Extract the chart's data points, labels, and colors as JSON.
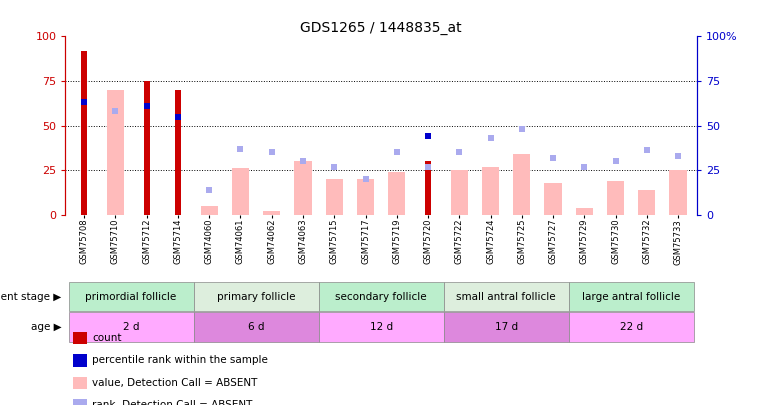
{
  "title": "GDS1265 / 1448835_at",
  "samples": [
    "GSM75708",
    "GSM75710",
    "GSM75712",
    "GSM75714",
    "GSM74060",
    "GSM74061",
    "GSM74062",
    "GSM74063",
    "GSM75715",
    "GSM75717",
    "GSM75719",
    "GSM75720",
    "GSM75722",
    "GSM75724",
    "GSM75725",
    "GSM75727",
    "GSM75729",
    "GSM75730",
    "GSM75732",
    "GSM75733"
  ],
  "count_values": [
    92,
    0,
    75,
    70,
    0,
    0,
    0,
    0,
    0,
    0,
    0,
    30,
    0,
    0,
    0,
    0,
    0,
    0,
    0,
    0
  ],
  "count_color": "#cc0000",
  "percentile_rank_values": [
    63,
    0,
    61,
    55,
    0,
    0,
    0,
    0,
    0,
    0,
    0,
    44,
    0,
    0,
    0,
    0,
    0,
    0,
    0,
    0
  ],
  "percentile_rank_color": "#0000cc",
  "absent_value_values": [
    0,
    70,
    0,
    0,
    5,
    26,
    2,
    30,
    20,
    20,
    24,
    0,
    25,
    27,
    34,
    18,
    4,
    19,
    14,
    25
  ],
  "absent_value_color": "#ffbbbb",
  "absent_rank_values": [
    0,
    58,
    0,
    0,
    14,
    37,
    35,
    30,
    27,
    20,
    35,
    27,
    35,
    43,
    48,
    32,
    27,
    30,
    36,
    33
  ],
  "absent_rank_color": "#aaaaee",
  "groups": [
    {
      "label": "primordial follicle",
      "indices": [
        0,
        1,
        2,
        3
      ],
      "color": "#bbeecc"
    },
    {
      "label": "primary follicle",
      "indices": [
        4,
        5,
        6,
        7
      ],
      "color": "#ddeedd"
    },
    {
      "label": "secondary follicle",
      "indices": [
        8,
        9,
        10,
        11
      ],
      "color": "#bbeecc"
    },
    {
      "label": "small antral follicle",
      "indices": [
        12,
        13,
        14,
        15
      ],
      "color": "#ddeedd"
    },
    {
      "label": "large antral follicle",
      "indices": [
        16,
        17,
        18,
        19
      ],
      "color": "#bbeecc"
    }
  ],
  "ages": [
    {
      "label": "2 d",
      "indices": [
        0,
        1,
        2,
        3
      ],
      "color": "#ffaaff"
    },
    {
      "label": "6 d",
      "indices": [
        4,
        5,
        6,
        7
      ],
      "color": "#dd88dd"
    },
    {
      "label": "12 d",
      "indices": [
        8,
        9,
        10,
        11
      ],
      "color": "#ffaaff"
    },
    {
      "label": "17 d",
      "indices": [
        12,
        13,
        14,
        15
      ],
      "color": "#dd88dd"
    },
    {
      "label": "22 d",
      "indices": [
        16,
        17,
        18,
        19
      ],
      "color": "#ffaaff"
    }
  ],
  "ylim": [
    0,
    100
  ],
  "yticks": [
    0,
    25,
    50,
    75,
    100
  ],
  "background_color": "#ffffff",
  "axis_label_color_left": "#cc0000",
  "axis_label_color_right": "#0000cc",
  "dev_stage_label": "development stage",
  "age_label": "age",
  "legend_items": [
    {
      "label": "count",
      "color": "#cc0000"
    },
    {
      "label": "percentile rank within the sample",
      "color": "#0000cc"
    },
    {
      "label": "value, Detection Call = ABSENT",
      "color": "#ffbbbb"
    },
    {
      "label": "rank, Detection Call = ABSENT",
      "color": "#aaaaee"
    }
  ]
}
